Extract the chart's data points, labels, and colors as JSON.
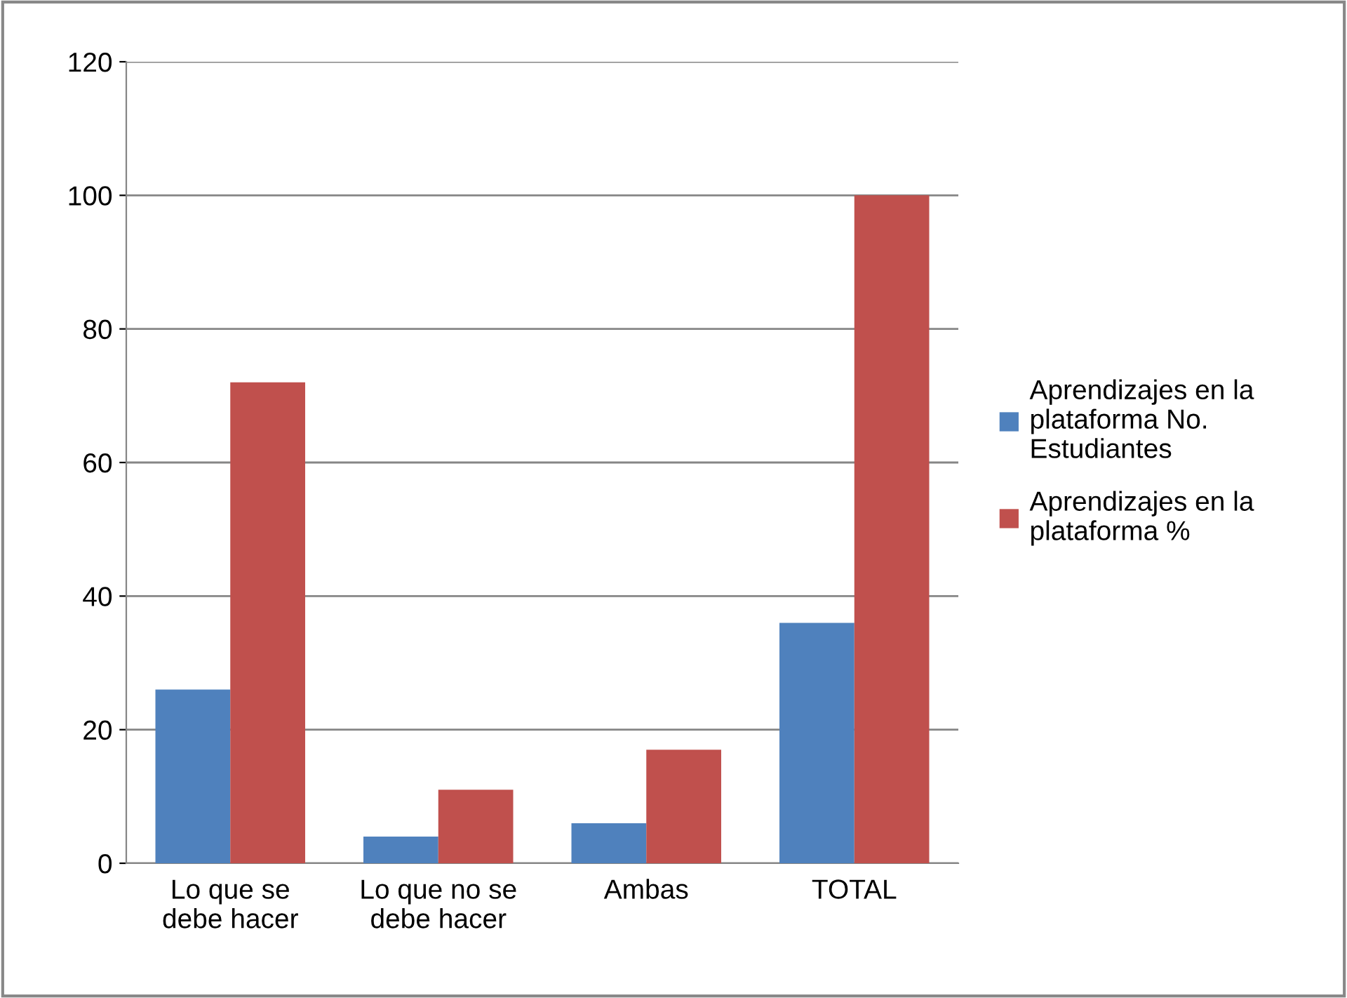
{
  "chart_data": {
    "type": "bar",
    "categories": [
      "Lo que se\ndebe hacer",
      "Lo que no se\ndebe hacer",
      "Ambas",
      "TOTAL"
    ],
    "series": [
      {
        "name": "Aprendizajes en la\nplataforma No.\nEstudiantes",
        "color": "#4f81bd",
        "values": [
          26,
          4,
          6,
          36
        ]
      },
      {
        "name": "Aprendizajes en la\nplataforma %",
        "color": "#c0504d",
        "values": [
          72,
          11,
          17,
          100
        ]
      }
    ],
    "ylim": [
      0,
      120
    ],
    "yticks": [
      0,
      20,
      40,
      60,
      80,
      100,
      120
    ],
    "grid": "y",
    "legend": "right"
  }
}
